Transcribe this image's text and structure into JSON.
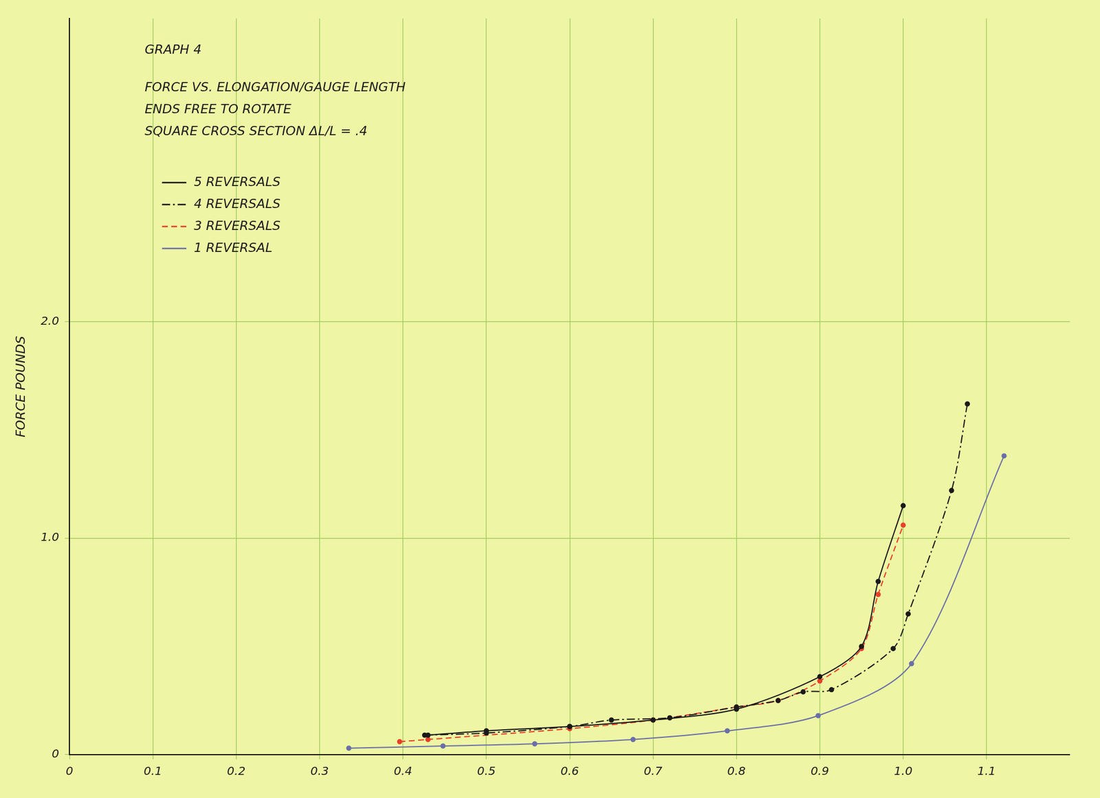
{
  "chart_data": {
    "type": "line",
    "title": "GRAPH 4",
    "subtitle": [
      "FORCE VS. ELONGATION/GAUGE LENGTH",
      "ENDS FREE TO ROTATE",
      "SQUARE CROSS SECTION ΔL/L = .4"
    ],
    "y_label": "FORCE POUNDS",
    "xlim": [
      0,
      1.2
    ],
    "xticks": [
      0,
      0.1,
      0.2,
      0.3,
      0.4,
      0.5,
      0.6,
      0.7,
      0.8,
      0.9,
      {
        "value": 1,
        "label": "1.0"
      },
      1.1
    ],
    "ylim": [
      0,
      3.4
    ],
    "yticks": [
      0,
      {
        "value": 1,
        "label": "1.0"
      },
      {
        "value": 2,
        "label": "2.0"
      }
    ],
    "grid": true,
    "legend": "upper left",
    "series": [
      {
        "name": "5 REVERSALS",
        "color": "#1a1a1a",
        "line_style": "solid",
        "marker": "circle",
        "x": [
          0.43,
          0.5,
          0.6,
          0.7,
          0.8,
          0.9,
          0.95,
          0.97,
          1.0
        ],
        "values": [
          0.09,
          0.11,
          0.13,
          0.16,
          0.21,
          0.36,
          0.5,
          0.8,
          1.15
        ]
      },
      {
        "name": "4 REVERSALS",
        "color": "#1a1a1a",
        "line_style": "dashdot",
        "marker": "circle",
        "x": [
          0.426,
          0.5,
          0.6,
          0.65,
          0.72,
          0.8,
          0.85,
          0.88,
          0.914,
          0.988,
          1.006,
          1.058,
          1.077
        ],
        "values": [
          0.09,
          0.1,
          0.13,
          0.16,
          0.17,
          0.22,
          0.25,
          0.29,
          0.3,
          0.49,
          0.65,
          1.22,
          1.62
        ]
      },
      {
        "name": "3 REVERSALS",
        "color": "#e8402a",
        "line_style": "dashed",
        "marker": "circle",
        "x": [
          0.396,
          0.43,
          0.6,
          0.7,
          0.8,
          0.85,
          0.9,
          0.95,
          0.97,
          1.0,
          1.052
        ],
        "values": [
          0.06,
          0.07,
          0.12,
          0.16,
          0.22,
          0.25,
          0.34,
          0.49,
          0.74,
          1.06,
          null
        ]
      },
      {
        "name": "1 REVERSAL",
        "color": "#6b6fa8",
        "line_style": "solid",
        "marker": "circle",
        "x": [
          0.335,
          0.448,
          0.558,
          0.676,
          0.789,
          0.898,
          1.01,
          1.121
        ],
        "values": [
          0.03,
          0.04,
          0.05,
          0.07,
          0.11,
          0.18,
          0.42,
          1.38
        ]
      }
    ]
  }
}
